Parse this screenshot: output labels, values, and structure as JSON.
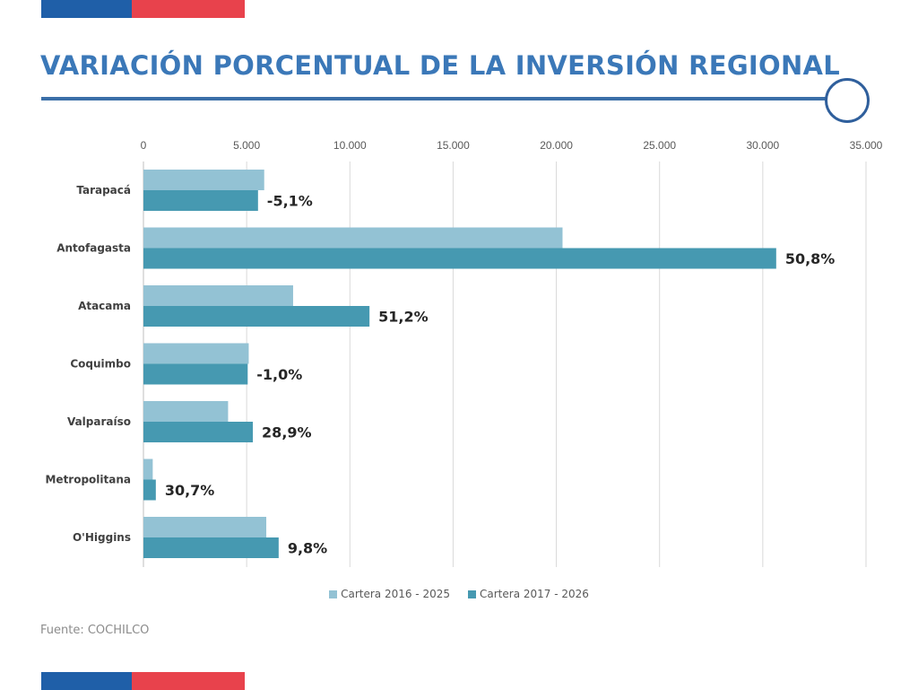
{
  "title": "VARIACIÓN PORCENTUAL DE LA INVERSIÓN REGIONAL",
  "source": "Fuente:  COCHILCO",
  "colors": {
    "flag_blue": "#1f5fa8",
    "flag_red": "#e8424c",
    "title": "#3b78b8",
    "series_2016": "#93c2d4",
    "series_2017": "#4699b1"
  },
  "chart_data": {
    "type": "bar",
    "orientation": "horizontal",
    "xlim": [
      0,
      35000
    ],
    "ticks": [
      0,
      5000,
      10000,
      15000,
      20000,
      25000,
      30000,
      35000
    ],
    "tick_labels": [
      "0",
      "5.000",
      "10.000",
      "15.000",
      "20.000",
      "25.000",
      "30.000",
      "35.000"
    ],
    "axis_position": "top",
    "grid": true,
    "legend_position": "bottom",
    "categories": [
      "Tarapacá",
      "Antofagasta",
      "Atacama",
      "Coquimbo",
      "Valparaíso",
      "Metropolitana",
      "O'Higgins"
    ],
    "series": [
      {
        "name": "Cartera 2016 - 2025",
        "color": "#93c2d4",
        "values": [
          5850,
          20300,
          7250,
          5100,
          4100,
          450,
          5950
        ]
      },
      {
        "name": "Cartera 2017 - 2026",
        "color": "#4699b1",
        "values": [
          5550,
          30650,
          10950,
          5050,
          5300,
          600,
          6550
        ]
      }
    ],
    "data_labels": [
      "-5,1%",
      "50,8%",
      "51,2%",
      "-1,0%",
      "28,9%",
      "30,7%",
      "9,8%"
    ]
  }
}
